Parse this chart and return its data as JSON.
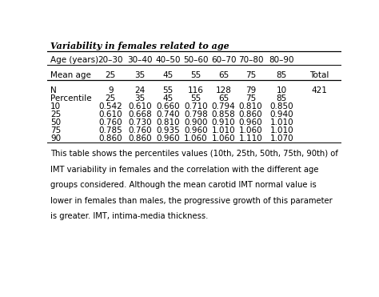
{
  "title": "Variability in females related to age",
  "header_row": [
    "Age (years)",
    "20–30",
    "30–40",
    "40–50",
    "50–60",
    "60–70",
    "70–80",
    "80–90"
  ],
  "rows": [
    [
      "Mean age",
      "25",
      "35",
      "45",
      "55",
      "65",
      "75",
      "85",
      "Total"
    ],
    [
      "N",
      "9",
      "24",
      "55",
      "116",
      "128",
      "79",
      "10",
      "421"
    ],
    [
      "Percentile",
      "25",
      "35",
      "45",
      "55",
      "65",
      "75",
      "85",
      ""
    ],
    [
      "10",
      "0.542",
      "0.610",
      "0.660",
      "0.710",
      "0.794",
      "0.810",
      "0.850",
      ""
    ],
    [
      "25",
      "0.610",
      "0.668",
      "0.740",
      "0.798",
      "0.858",
      "0.860",
      "0.940",
      ""
    ],
    [
      "50",
      "0.760",
      "0.730",
      "0.810",
      "0.900",
      "0.910",
      "0.960",
      "1.010",
      ""
    ],
    [
      "75",
      "0.785",
      "0.760",
      "0.935",
      "0.960",
      "1.010",
      "1.060",
      "1.010",
      ""
    ],
    [
      "90",
      "0.860",
      "0.860",
      "0.960",
      "1.060",
      "1.060",
      "1.110",
      "1.070",
      ""
    ]
  ],
  "footer": "This table shows the percentiles values (10th, 25th, 50th, 75th, 90th) of IMT variability in females and the correlation with the different age groups considered. Although the mean carotid IMT normal value is lower in females than males, the progressive growth of this parameter is greater. IMT, intima-media thickness.",
  "bg_color": "#ffffff",
  "text_color": "#000000",
  "font_size": 7.5,
  "footer_font_size": 7.2
}
